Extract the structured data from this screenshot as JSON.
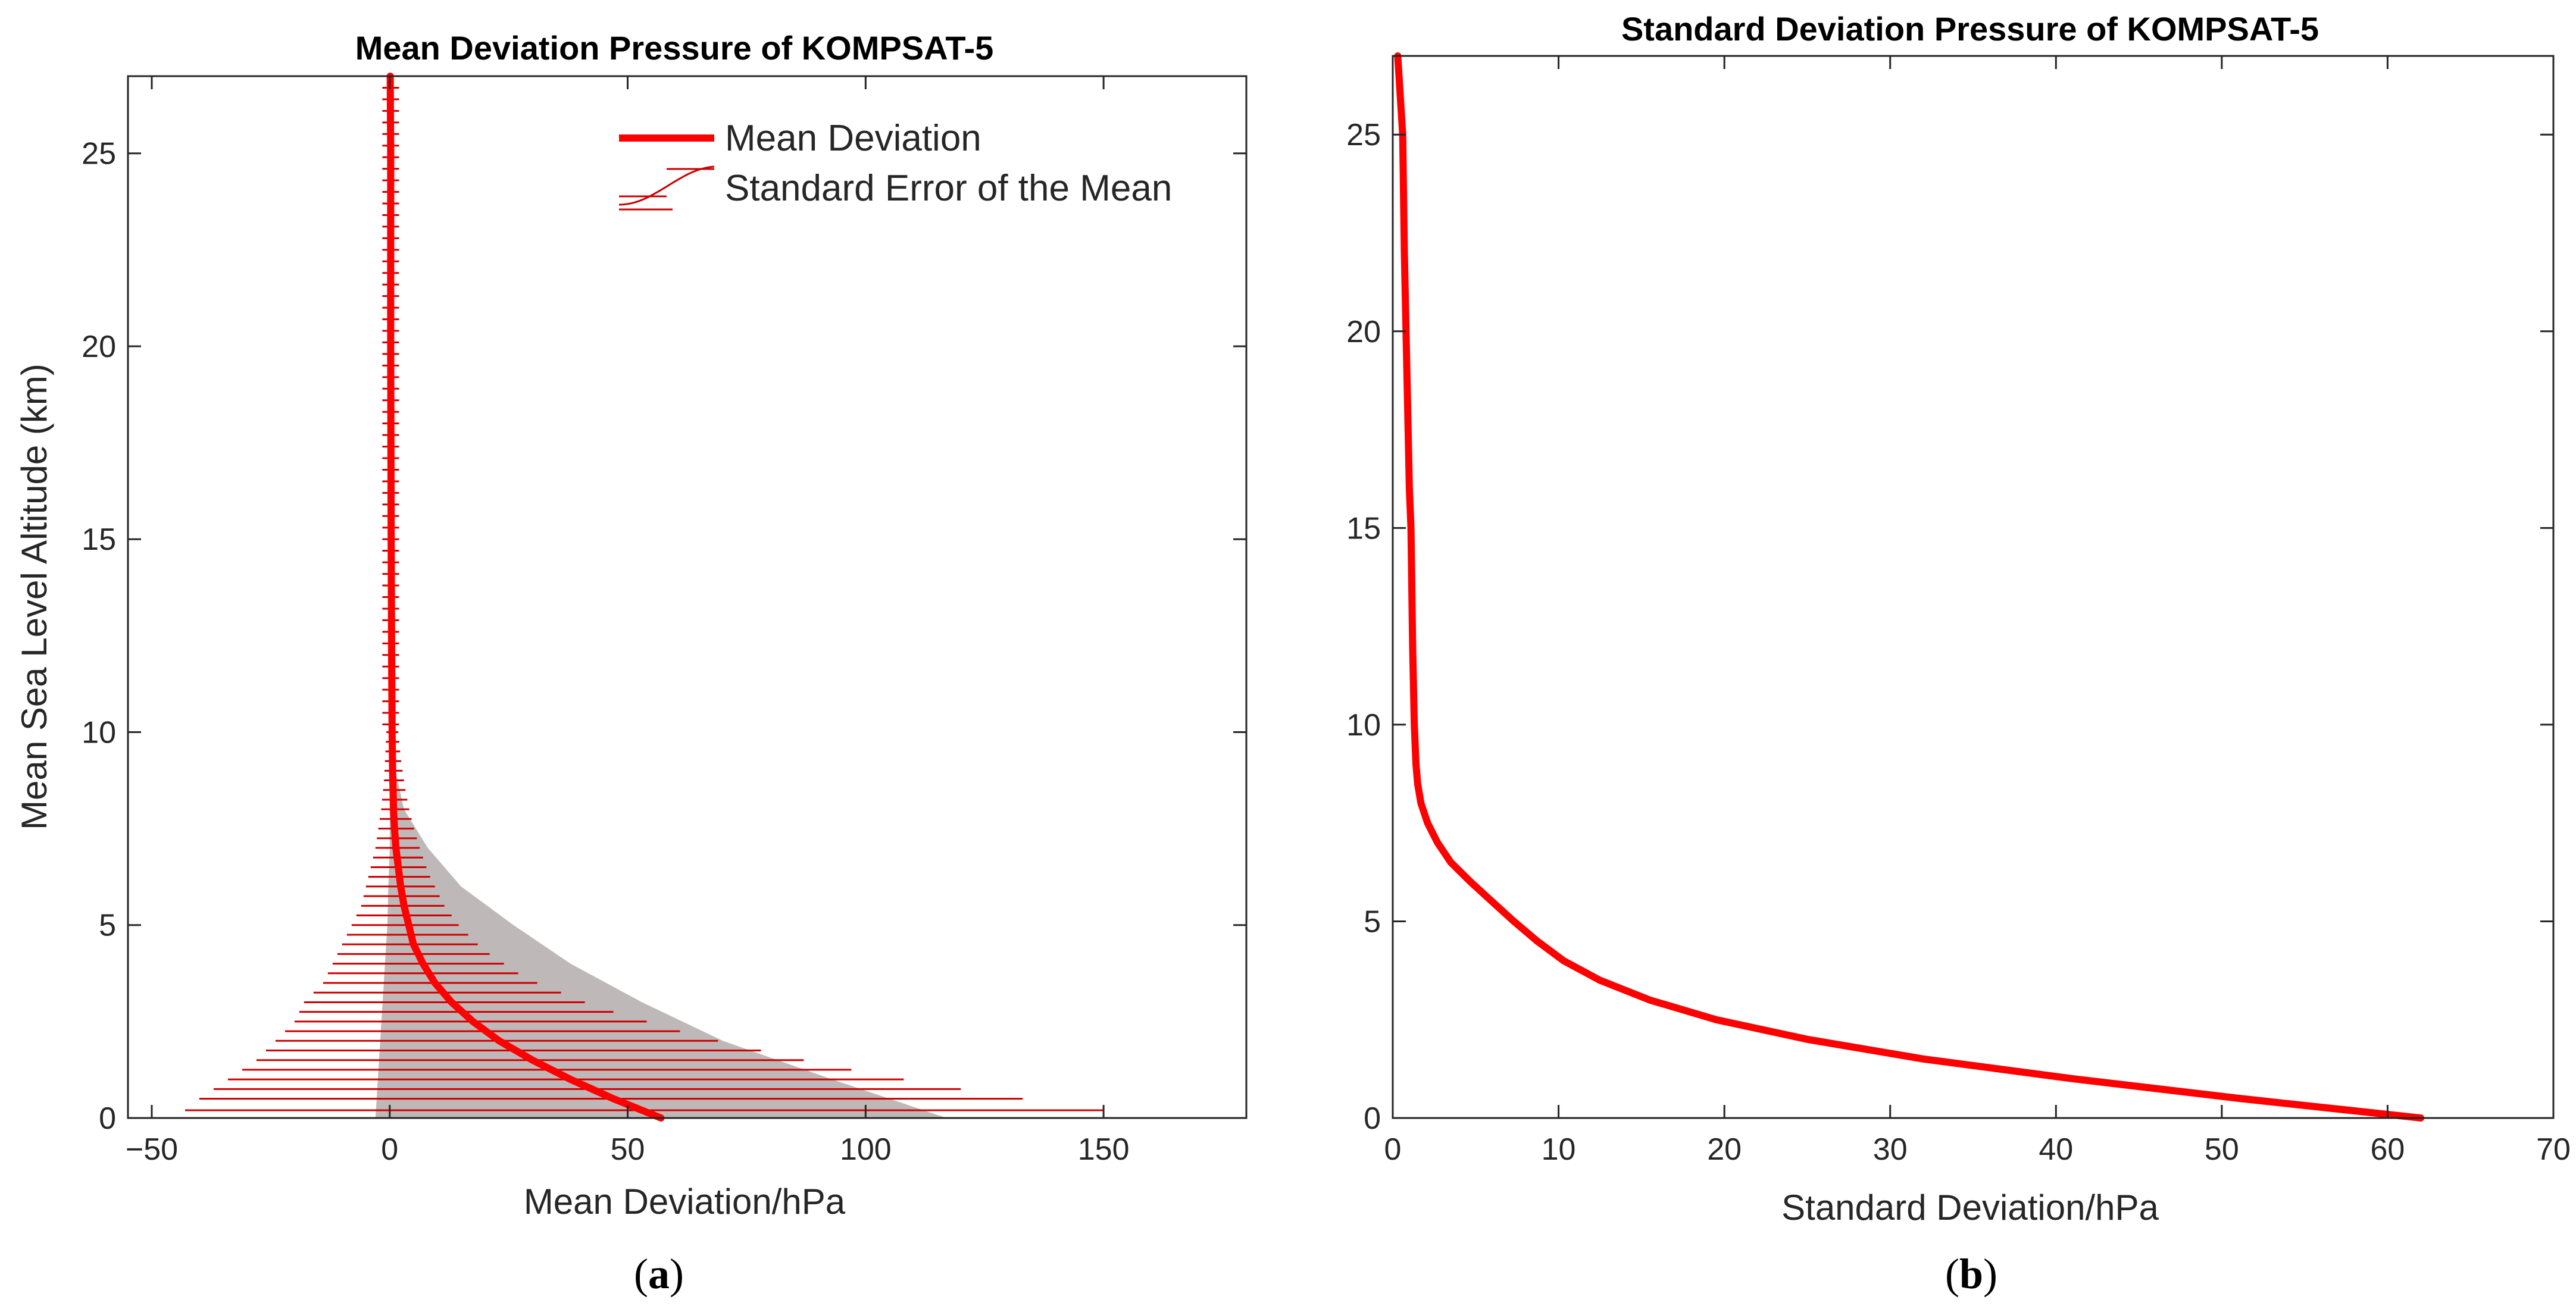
{
  "chart_data": [
    {
      "type": "line",
      "title": "Mean Deviation Pressure of KOMPSAT-5",
      "xlabel": "Mean Deviation/hPa",
      "ylabel": "Mean Sea Level Altitude (km)",
      "panel_label": {
        "open": "(",
        "letter": "a",
        "close": ")"
      },
      "xlim": [
        -55,
        180
      ],
      "ylim": [
        0,
        27
      ],
      "xticks": [
        -50,
        0,
        50,
        100,
        150
      ],
      "xtick_labels": [
        "−50",
        "0",
        "50",
        "100",
        "150"
      ],
      "yticks": [
        0,
        5,
        10,
        15,
        20,
        25
      ],
      "ytick_labels": [
        "0",
        "5",
        "10",
        "15",
        "20",
        "25"
      ],
      "grid": false,
      "legend_position": "top-right",
      "colors": {
        "line": "#ff0000",
        "error": "#cc0000",
        "band": "#bfb8b8"
      },
      "series": [
        {
          "name": "Mean Deviation",
          "y": [
            0,
            0.5,
            1,
            1.5,
            2,
            2.5,
            3,
            3.5,
            4,
            4.5,
            5,
            5.5,
            6,
            6.5,
            7,
            7.5,
            8,
            9,
            10,
            12,
            15,
            20,
            25,
            27
          ],
          "x": [
            57,
            47,
            38,
            30,
            23,
            17.5,
            13,
            9.5,
            7,
            5,
            4,
            3,
            2.3,
            1.8,
            1.3,
            1,
            0.8,
            0.6,
            0.5,
            0.4,
            0.3,
            0.2,
            0.2,
            0.1
          ]
        },
        {
          "name": "Standard Error of the Mean",
          "y": [
            0.2,
            0.5,
            0.75,
            1,
            1.25,
            1.5,
            1.75,
            2,
            2.25,
            2.5,
            2.75,
            3,
            3.25,
            3.5,
            3.75,
            4,
            4.25,
            4.5,
            4.75,
            5,
            5.25,
            5.5,
            5.75,
            6,
            6.25,
            6.5,
            6.75,
            7,
            7.25,
            7.5,
            7.75,
            8,
            8.25,
            8.5,
            8.75,
            9,
            9.25,
            9.5,
            9.75,
            10
          ],
          "lo": [
            -43,
            -40,
            -37,
            -34,
            -31,
            -28,
            -26,
            -24,
            -22,
            -20,
            -19,
            -18,
            -16,
            -14,
            -13,
            -12,
            -11,
            -10,
            -9,
            -8,
            -7,
            -6,
            -5.5,
            -5,
            -4.5,
            -4,
            -3.5,
            -3,
            -2.7,
            -2.4,
            -2.1,
            -1.8,
            -1.6,
            -1.4,
            -1.2,
            -1.1,
            -1,
            -0.9,
            -0.8,
            -0.7
          ],
          "hi": [
            150,
            133,
            120,
            108,
            97,
            87,
            78,
            69,
            61,
            54,
            47,
            41,
            36,
            31,
            27,
            24,
            21,
            18.5,
            16.5,
            14.5,
            13,
            11.5,
            10.5,
            9.5,
            8.5,
            7.7,
            7,
            6.3,
            5.7,
            5.1,
            4.6,
            4.1,
            3.7,
            3.3,
            3,
            2.7,
            2.4,
            2.2,
            2,
            1.8
          ]
        }
      ],
      "band": {
        "y": [
          0,
          1,
          2,
          3,
          4,
          5,
          6,
          7,
          8,
          9,
          10,
          27
        ],
        "left": [
          -3,
          -2.5,
          -2,
          -1.5,
          -1,
          -0.5,
          -0.3,
          0,
          0,
          0,
          0,
          0
        ],
        "right": [
          117,
          93,
          70,
          53,
          38,
          26,
          15,
          8,
          3,
          1.2,
          0.6,
          0.2
        ]
      }
    },
    {
      "type": "line",
      "title": "Standard Deviation Pressure of KOMPSAT-5",
      "xlabel": "Standard Deviation/hPa",
      "ylabel": "",
      "panel_label": {
        "open": "(",
        "letter": "b",
        "close": ")"
      },
      "xlim": [
        0,
        70
      ],
      "ylim": [
        0,
        27
      ],
      "xticks": [
        0,
        10,
        20,
        30,
        40,
        50,
        60,
        70
      ],
      "xtick_labels": [
        "0",
        "10",
        "20",
        "30",
        "40",
        "50",
        "60",
        "70"
      ],
      "yticks": [
        0,
        5,
        10,
        15,
        20,
        25
      ],
      "ytick_labels": [
        "0",
        "5",
        "10",
        "15",
        "20",
        "25"
      ],
      "grid": false,
      "colors": {
        "line": "#ff0000"
      },
      "series": [
        {
          "name": "",
          "y": [
            0,
            0.5,
            1,
            1.5,
            2,
            2.5,
            3,
            3.5,
            4,
            4.5,
            5,
            5.5,
            6,
            6.5,
            7,
            7.5,
            8,
            8.5,
            9,
            10,
            12,
            15,
            16,
            18,
            20,
            22,
            25,
            27
          ],
          "x": [
            62,
            51,
            41,
            32,
            25,
            19.5,
            15.5,
            12.5,
            10.3,
            8.7,
            7.3,
            6,
            4.7,
            3.5,
            2.7,
            2.1,
            1.7,
            1.5,
            1.4,
            1.3,
            1.2,
            1.1,
            1.0,
            0.9,
            0.8,
            0.7,
            0.6,
            0.3
          ]
        }
      ]
    }
  ]
}
